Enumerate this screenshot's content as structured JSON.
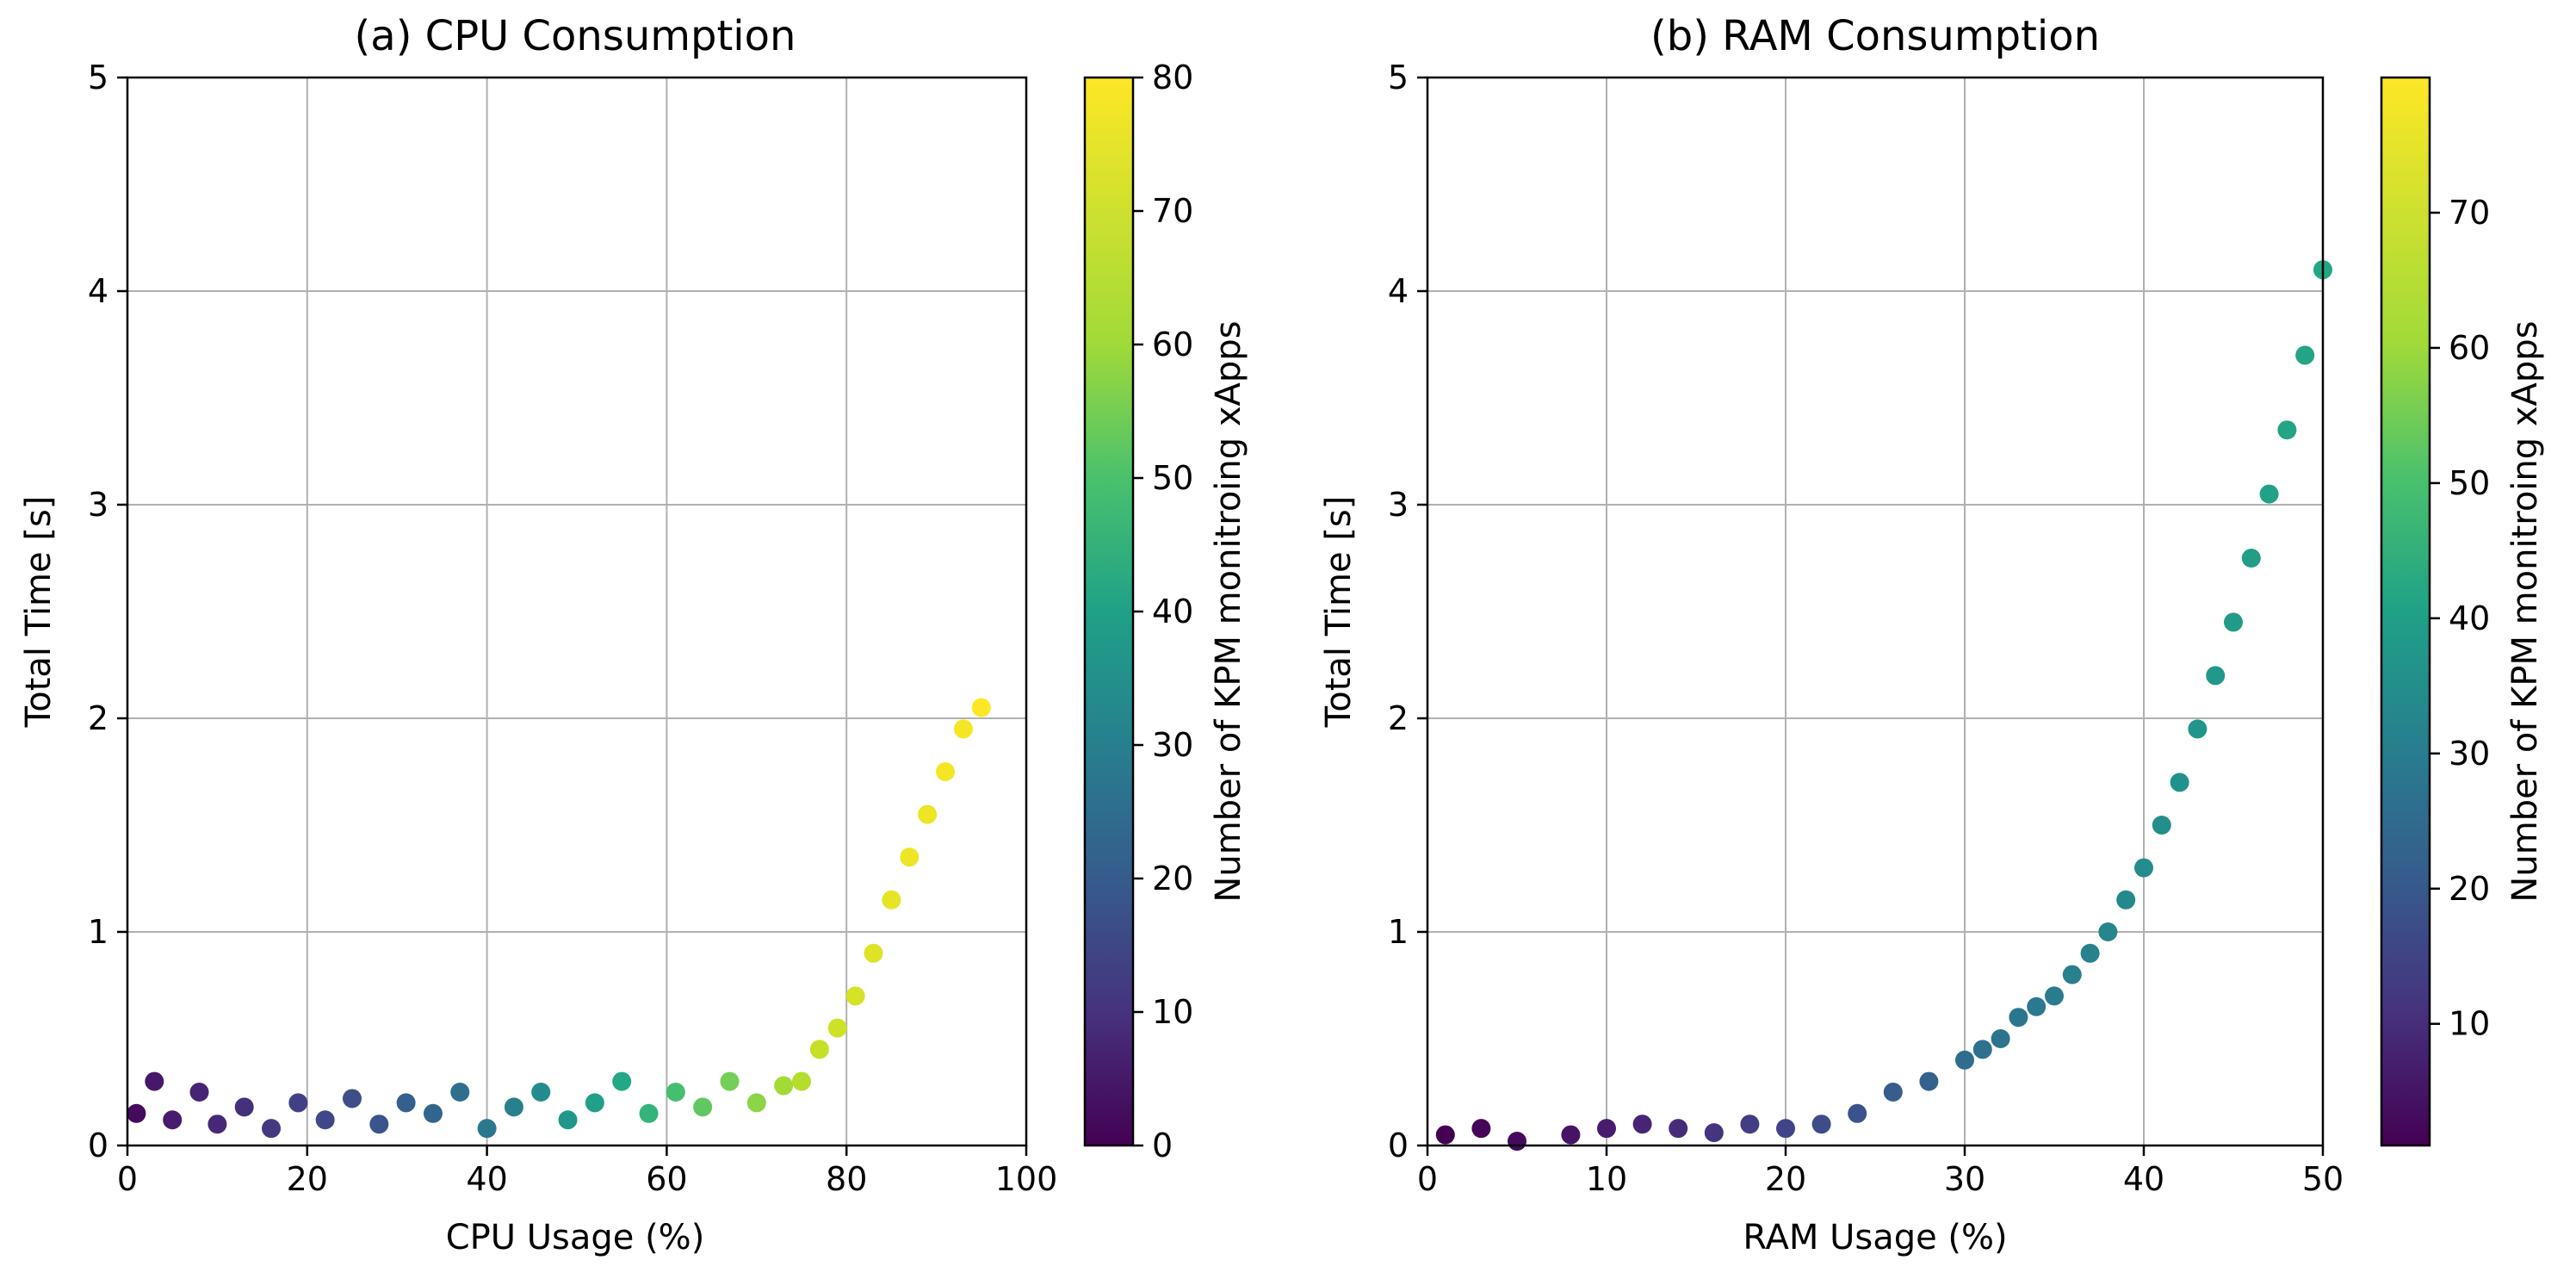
{
  "chart_data": [
    {
      "type": "scatter",
      "title": "(a) CPU Consumption",
      "xlabel": "CPU Usage (%)",
      "ylabel": "Total Time [s]",
      "xlim": [
        0,
        100
      ],
      "ylim": [
        0,
        5
      ],
      "xticks": [
        "0",
        "20",
        "40",
        "60",
        "80",
        "100"
      ],
      "yticks": [
        "0",
        "1",
        "2",
        "3",
        "4",
        "5"
      ],
      "grid": true,
      "colorbar": {
        "label": "Number of KPM monitroing xApps",
        "range": [
          0,
          80
        ],
        "ticks": [
          "0",
          "10",
          "20",
          "30",
          "40",
          "50",
          "60",
          "70",
          "80"
        ],
        "colormap": "viridis"
      },
      "series": [
        {
          "name": "points",
          "description": "Total time stays near 0–0.4 s for CPU usage 0–75%, then rises sharply to ~2.1 s at 95% CPU; color encodes xApp count (0–80)",
          "x": [
            1,
            3,
            5,
            8,
            10,
            13,
            16,
            19,
            22,
            25,
            28,
            31,
            34,
            37,
            40,
            43,
            46,
            49,
            52,
            55,
            58,
            61,
            64,
            67,
            70,
            73,
            75,
            77,
            79,
            81,
            83,
            85,
            87,
            89,
            91,
            93,
            95
          ],
          "y": [
            0.15,
            0.3,
            0.12,
            0.25,
            0.1,
            0.18,
            0.08,
            0.2,
            0.12,
            0.22,
            0.1,
            0.2,
            0.15,
            0.25,
            0.08,
            0.18,
            0.25,
            0.12,
            0.2,
            0.3,
            0.15,
            0.25,
            0.18,
            0.3,
            0.2,
            0.28,
            0.3,
            0.45,
            0.55,
            0.7,
            0.9,
            1.15,
            1.35,
            1.55,
            1.75,
            1.95,
            2.05
          ],
          "c": [
            2,
            5,
            6,
            8,
            9,
            11,
            13,
            15,
            17,
            19,
            21,
            24,
            26,
            29,
            32,
            35,
            38,
            42,
            45,
            48,
            52,
            56,
            60,
            63,
            66,
            69,
            71,
            73,
            74,
            75,
            76,
            77,
            78,
            78,
            79,
            79,
            80
          ]
        }
      ]
    },
    {
      "type": "scatter",
      "title": "(b) RAM Consumption",
      "xlabel": "RAM Usage (%)",
      "ylabel": "Total Time [s]",
      "xlim": [
        0,
        50
      ],
      "ylim": [
        0,
        5
      ],
      "xticks": [
        "0",
        "10",
        "20",
        "30",
        "40",
        "50"
      ],
      "yticks": [
        "0",
        "1",
        "2",
        "3",
        "4",
        "5"
      ],
      "grid": true,
      "colorbar": {
        "label": "Number of KPM monitroing xApps",
        "range": [
          1,
          80
        ],
        "ticks": [
          "10",
          "20",
          "30",
          "40",
          "50",
          "60",
          "70"
        ],
        "colormap": "viridis"
      },
      "series": [
        {
          "name": "points",
          "description": "Total time near 0–0.2 s for RAM usage 0–22%, then grows exponentially to ~4.2 s at 50% RAM; colors go from dark purple to teal (~1–48 xApps)",
          "x": [
            1,
            3,
            5,
            8,
            10,
            12,
            14,
            16,
            18,
            20,
            22,
            24,
            26,
            28,
            30,
            31,
            32,
            33,
            34,
            35,
            36,
            37,
            38,
            39,
            40,
            41,
            42,
            43,
            44,
            45,
            46,
            47,
            48,
            49,
            50
          ],
          "y": [
            0.05,
            0.08,
            0.02,
            0.05,
            0.08,
            0.1,
            0.08,
            0.06,
            0.1,
            0.08,
            0.1,
            0.15,
            0.25,
            0.3,
            0.4,
            0.45,
            0.5,
            0.6,
            0.65,
            0.7,
            0.8,
            0.9,
            1.0,
            1.15,
            1.3,
            1.5,
            1.7,
            1.95,
            2.2,
            2.45,
            2.75,
            3.05,
            3.35,
            3.7,
            4.1
          ],
          "c": [
            1,
            2,
            3,
            5,
            7,
            9,
            11,
            13,
            15,
            17,
            19,
            21,
            24,
            26,
            29,
            30,
            31,
            32,
            33,
            34,
            35,
            36,
            37,
            38,
            39,
            40,
            41,
            42,
            43,
            44,
            45,
            46,
            47,
            47,
            48
          ]
        }
      ]
    }
  ]
}
